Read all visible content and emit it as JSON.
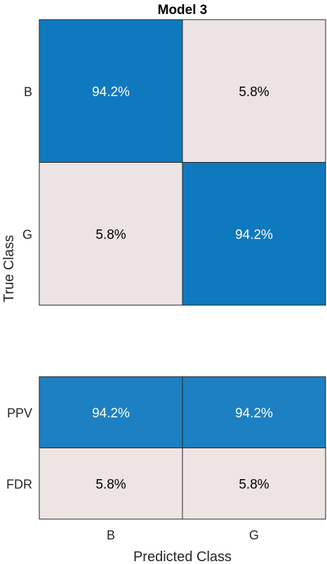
{
  "chart_data": {
    "type": "heatmap",
    "title": "Model 3",
    "xlabel": "Predicted Class",
    "ylabel": "True Class",
    "classes": [
      "B",
      "G"
    ],
    "confusion_matrix": {
      "rows": [
        "B",
        "G"
      ],
      "cols": [
        "B",
        "G"
      ],
      "values": [
        [
          94.2,
          5.8
        ],
        [
          5.8,
          94.2
        ]
      ],
      "labels": [
        [
          "94.2%",
          "5.8%"
        ],
        [
          "5.8%",
          "94.2%"
        ]
      ]
    },
    "summary": {
      "rows": [
        "PPV",
        "FDR"
      ],
      "cols": [
        "B",
        "G"
      ],
      "values": [
        [
          94.2,
          94.2
        ],
        [
          5.8,
          5.8
        ]
      ],
      "labels": [
        [
          "94.2%",
          "94.2%"
        ],
        [
          "5.8%",
          "5.8%"
        ]
      ]
    },
    "colors": {
      "high": "#0072BD",
      "low": "#FBEBE6",
      "text_on_high": "#ffffff",
      "text_on_low": "#000000"
    }
  }
}
